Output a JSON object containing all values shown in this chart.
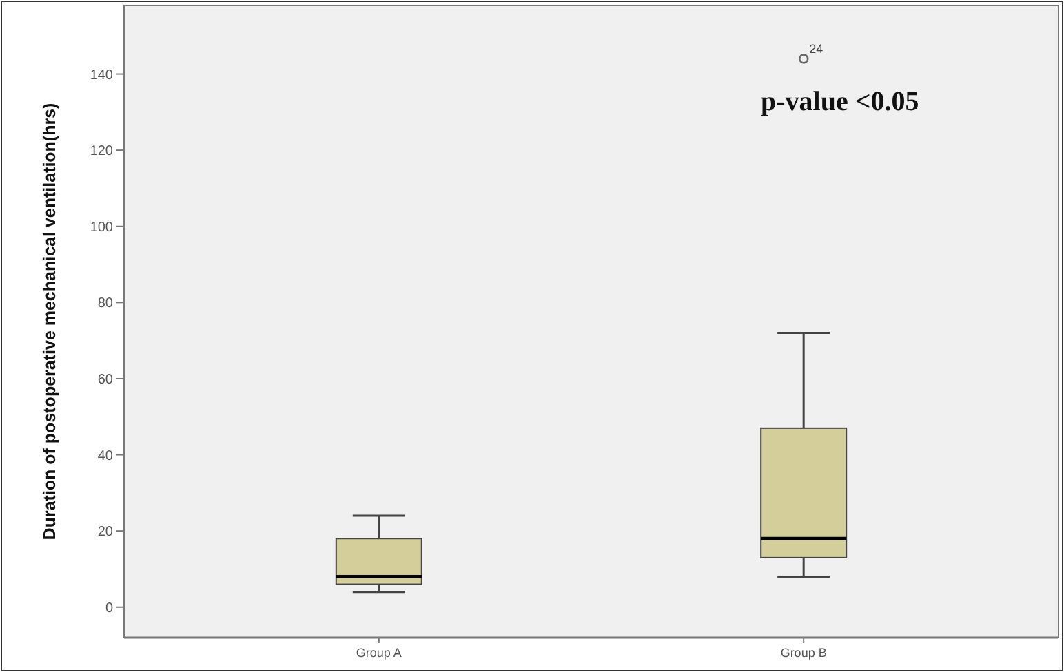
{
  "chart_data": {
    "type": "box",
    "ylabel": "Duration of postoperative mechanical ventilation(hrs)",
    "categories": [
      "Group A",
      "Group B"
    ],
    "boxes": [
      {
        "low": 4,
        "q1": 6,
        "median": 8,
        "q3": 18,
        "high": 24
      },
      {
        "low": 8,
        "q1": 13,
        "median": 18,
        "q3": 47,
        "high": 72,
        "outliers": [
          144
        ]
      }
    ],
    "color": "#d4cf9a",
    "ylim": [
      -8,
      158
    ],
    "yticks": [
      0,
      20,
      40,
      60,
      80,
      100,
      120,
      140
    ],
    "grid": false,
    "annotations": [
      "24",
      "p-value <0.05"
    ]
  }
}
